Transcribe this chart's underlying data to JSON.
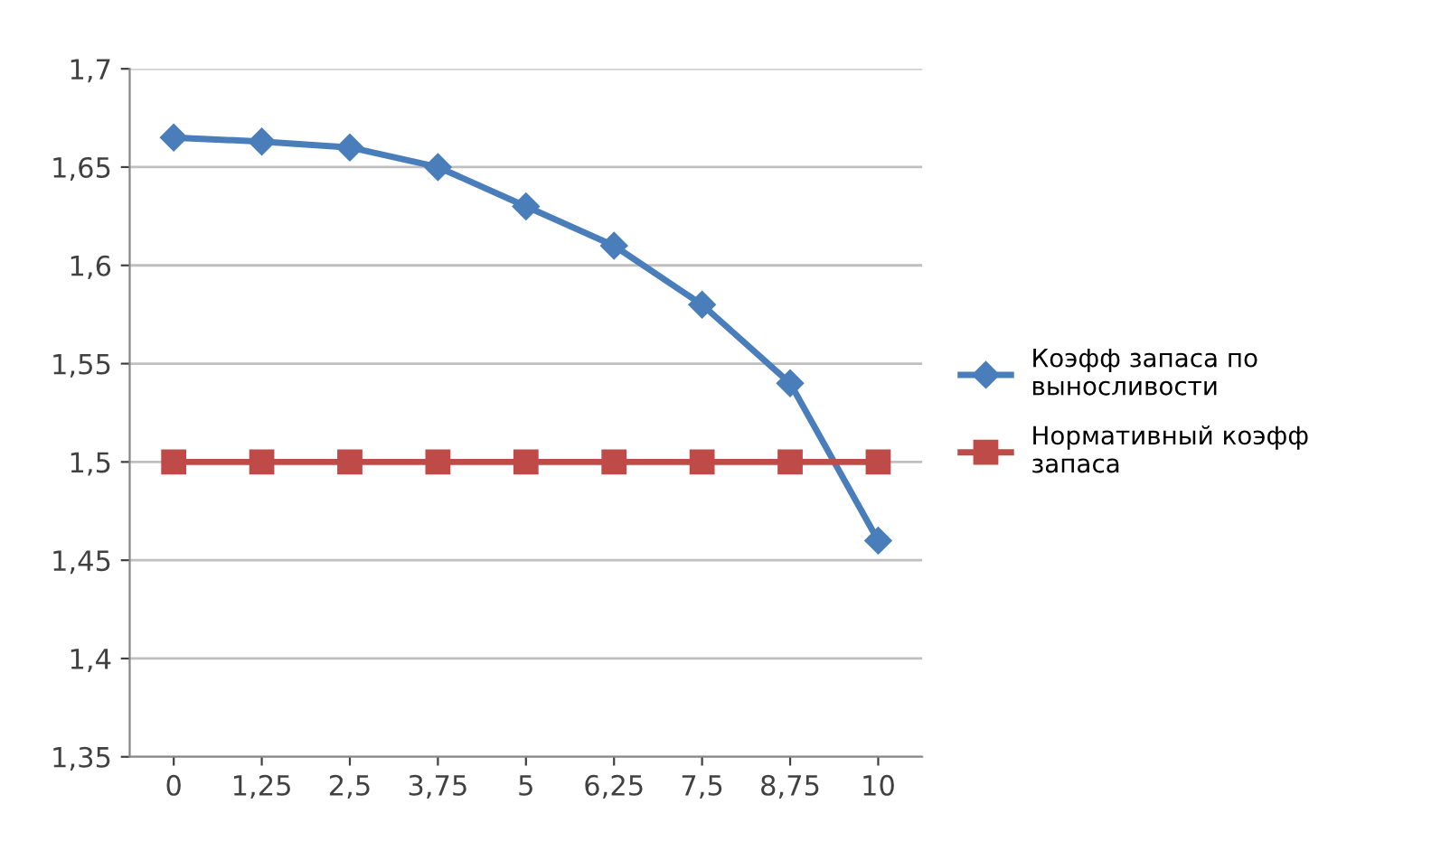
{
  "chart_data": {
    "type": "line",
    "categories": [
      "0",
      "1,25",
      "2,5",
      "3,75",
      "5",
      "6,25",
      "7,5",
      "8,75",
      "10"
    ],
    "series": [
      {
        "name": "Коэфф запаса по выносливости",
        "color": "#4a7ebb",
        "marker": "diamond",
        "values": [
          1.665,
          1.663,
          1.66,
          1.65,
          1.63,
          1.61,
          1.58,
          1.54,
          1.46
        ]
      },
      {
        "name": "Нормативный коэфф запаса",
        "color": "#be4b48",
        "marker": "square",
        "values": [
          1.5,
          1.5,
          1.5,
          1.5,
          1.5,
          1.5,
          1.5,
          1.5,
          1.5
        ]
      }
    ],
    "ylim": [
      1.35,
      1.7
    ],
    "yticks": [
      {
        "value": 1.35,
        "label": "1,35"
      },
      {
        "value": 1.4,
        "label": "1,4"
      },
      {
        "value": 1.45,
        "label": "1,45"
      },
      {
        "value": 1.5,
        "label": "1,5"
      },
      {
        "value": 1.55,
        "label": "1,55"
      },
      {
        "value": 1.6,
        "label": "1,6"
      },
      {
        "value": 1.65,
        "label": "1,65"
      },
      {
        "value": 1.7,
        "label": "1,7"
      }
    ],
    "grid": "y",
    "legend": "right",
    "line_style": "solid"
  }
}
